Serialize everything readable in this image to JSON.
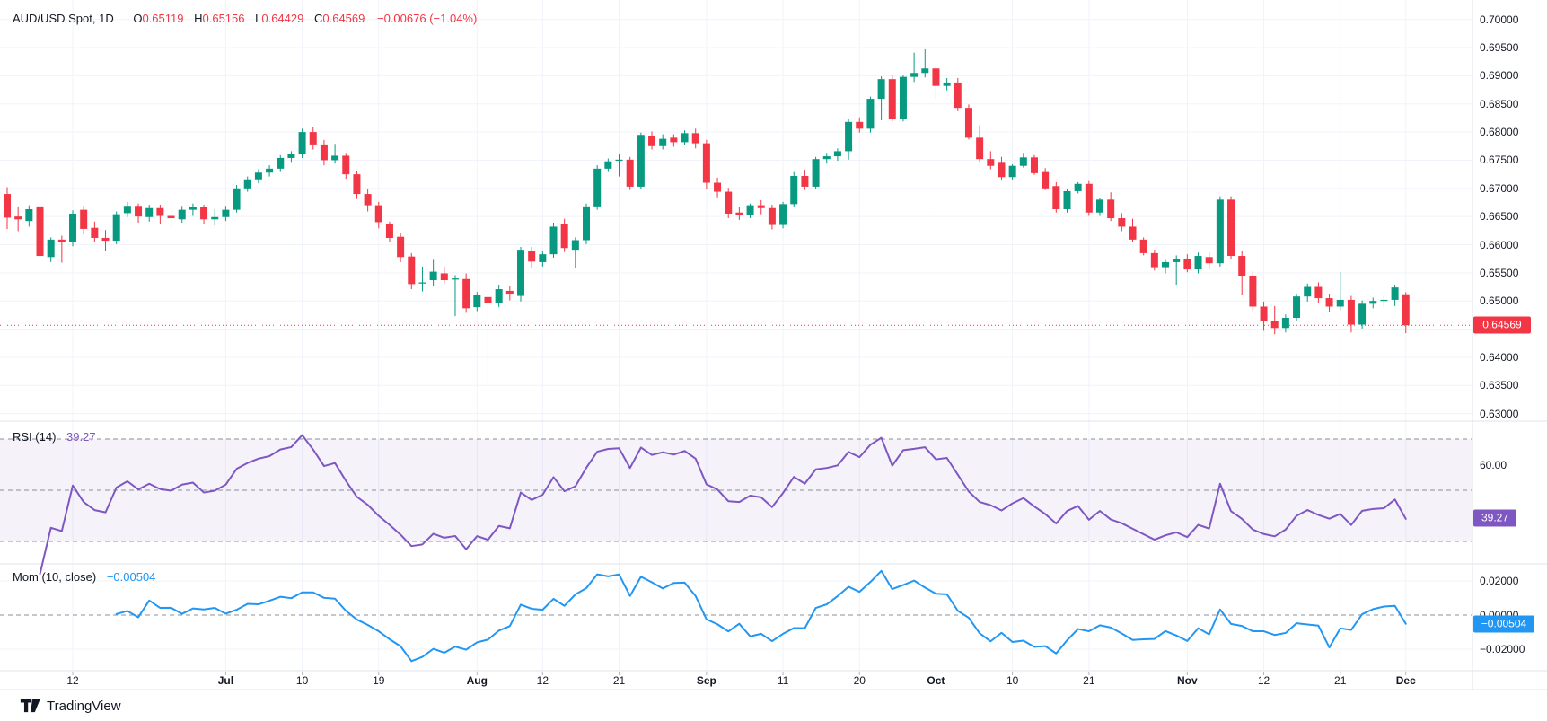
{
  "header": {
    "symbol_title": "AUD/USD Spot, 1D",
    "o_label": "O",
    "o_value": "0.65119",
    "h_label": "H",
    "h_value": "0.65156",
    "l_label": "L",
    "l_value": "0.64429",
    "c_label": "C",
    "c_value": "0.64569",
    "change": "−0.00676 (−1.04%)"
  },
  "rsi_pane": {
    "label": "RSI (14)",
    "value": "39.27",
    "axis_label": "60.00"
  },
  "mom_pane": {
    "label": "Mom (10, close)",
    "value": "−0.00504",
    "axis_labels": [
      "0.02000",
      "0.00000",
      "−0.02000"
    ]
  },
  "price_axis_badge": "0.64569",
  "watermark": "TradingView",
  "colors": {
    "up": "#089981",
    "down": "#F23645",
    "rsi_line": "#7E57C2",
    "rsi_band_fill": "rgba(126,87,194,0.08)",
    "rsi_badge": "#7E57C2",
    "mom_line": "#2196F3",
    "mom_badge": "#2196F3",
    "last_price": "#F23645",
    "grid": "#F0F3FA",
    "separator": "#E0E3EB",
    "dashed_level": "#8C8F98",
    "text": "#131722"
  },
  "chart_data": {
    "type": "candlestick",
    "title": "AUD/USD Spot, 1D",
    "interval": "1D",
    "price_ylim": [
      0.63,
      0.7
    ],
    "price_ticks": [
      0.7,
      0.695,
      0.69,
      0.685,
      0.68,
      0.675,
      0.67,
      0.665,
      0.66,
      0.655,
      0.65,
      0.64,
      0.635,
      0.63
    ],
    "last_price": 0.64569,
    "grid": true,
    "time_ticks": [
      {
        "label": "12",
        "i": 6,
        "bold": false
      },
      {
        "label": "Jul",
        "i": 20,
        "bold": true
      },
      {
        "label": "10",
        "i": 27,
        "bold": false
      },
      {
        "label": "19",
        "i": 34,
        "bold": false
      },
      {
        "label": "Aug",
        "i": 43,
        "bold": true
      },
      {
        "label": "12",
        "i": 49,
        "bold": false
      },
      {
        "label": "21",
        "i": 56,
        "bold": false
      },
      {
        "label": "Sep",
        "i": 64,
        "bold": true
      },
      {
        "label": "11",
        "i": 71,
        "bold": false
      },
      {
        "label": "20",
        "i": 78,
        "bold": false
      },
      {
        "label": "Oct",
        "i": 85,
        "bold": true
      },
      {
        "label": "10",
        "i": 92,
        "bold": false
      },
      {
        "label": "21",
        "i": 99,
        "bold": false
      },
      {
        "label": "Nov",
        "i": 108,
        "bold": true
      },
      {
        "label": "12",
        "i": 115,
        "bold": false
      },
      {
        "label": "21",
        "i": 122,
        "bold": false
      },
      {
        "label": "Dec",
        "i": 128,
        "bold": true
      }
    ],
    "indicators": [
      {
        "name": "RSI",
        "period": 14,
        "last": 39.27,
        "levels": [
          70,
          50,
          30
        ],
        "visible_axis_label": 60
      },
      {
        "name": "Momentum",
        "period": 10,
        "source": "close",
        "last": -0.00504,
        "axis_ticks": [
          0.02,
          0.0,
          -0.02
        ]
      }
    ],
    "candles": [
      [
        0.669,
        0.6702,
        0.6628,
        0.6648
      ],
      [
        0.665,
        0.6668,
        0.6624,
        0.6645
      ],
      [
        0.6642,
        0.667,
        0.6632,
        0.6663
      ],
      [
        0.6668,
        0.6673,
        0.6572,
        0.658
      ],
      [
        0.6578,
        0.6613,
        0.6569,
        0.6609
      ],
      [
        0.6609,
        0.6616,
        0.6568,
        0.6604
      ],
      [
        0.6604,
        0.6661,
        0.6597,
        0.6655
      ],
      [
        0.6662,
        0.6669,
        0.6618,
        0.6628
      ],
      [
        0.663,
        0.6641,
        0.6604,
        0.6612
      ],
      [
        0.6612,
        0.6626,
        0.6589,
        0.6607
      ],
      [
        0.6607,
        0.6659,
        0.6601,
        0.6654
      ],
      [
        0.6656,
        0.6676,
        0.6649,
        0.6669
      ],
      [
        0.6669,
        0.6673,
        0.6639,
        0.665
      ],
      [
        0.6649,
        0.6671,
        0.6641,
        0.6665
      ],
      [
        0.6665,
        0.6671,
        0.6637,
        0.6651
      ],
      [
        0.6651,
        0.6661,
        0.6629,
        0.6647
      ],
      [
        0.6645,
        0.6669,
        0.6639,
        0.6662
      ],
      [
        0.6662,
        0.6673,
        0.6651,
        0.6667
      ],
      [
        0.6667,
        0.6671,
        0.6637,
        0.6645
      ],
      [
        0.6645,
        0.6663,
        0.6634,
        0.6649
      ],
      [
        0.6649,
        0.6669,
        0.6642,
        0.6662
      ],
      [
        0.6662,
        0.6706,
        0.6657,
        0.67
      ],
      [
        0.67,
        0.6721,
        0.6694,
        0.6716
      ],
      [
        0.6716,
        0.6734,
        0.6709,
        0.6728
      ],
      [
        0.6728,
        0.6741,
        0.6721,
        0.6735
      ],
      [
        0.6735,
        0.6759,
        0.6729,
        0.6754
      ],
      [
        0.6754,
        0.6766,
        0.6747,
        0.6761
      ],
      [
        0.6761,
        0.6806,
        0.6754,
        0.68
      ],
      [
        0.68,
        0.6809,
        0.6769,
        0.6778
      ],
      [
        0.6778,
        0.6786,
        0.6741,
        0.675
      ],
      [
        0.675,
        0.6779,
        0.6744,
        0.6758
      ],
      [
        0.6758,
        0.6763,
        0.6717,
        0.6725
      ],
      [
        0.6725,
        0.6731,
        0.6681,
        0.669
      ],
      [
        0.669,
        0.6699,
        0.6659,
        0.667
      ],
      [
        0.667,
        0.6676,
        0.6629,
        0.664
      ],
      [
        0.6637,
        0.6641,
        0.6604,
        0.6612
      ],
      [
        0.6614,
        0.6621,
        0.6569,
        0.6578
      ],
      [
        0.6579,
        0.6585,
        0.6521,
        0.653
      ],
      [
        0.6531,
        0.6561,
        0.6517,
        0.6533
      ],
      [
        0.6537,
        0.6573,
        0.6527,
        0.6552
      ],
      [
        0.6549,
        0.6561,
        0.6531,
        0.6537
      ],
      [
        0.6538,
        0.6546,
        0.6473,
        0.654
      ],
      [
        0.6539,
        0.6549,
        0.6479,
        0.6487
      ],
      [
        0.6489,
        0.6516,
        0.6482,
        0.651
      ],
      [
        0.6507,
        0.6513,
        0.6351,
        0.6496
      ],
      [
        0.6496,
        0.6529,
        0.6489,
        0.6521
      ],
      [
        0.6518,
        0.6526,
        0.6501,
        0.6513
      ],
      [
        0.6509,
        0.6596,
        0.6499,
        0.6591
      ],
      [
        0.6589,
        0.6596,
        0.6559,
        0.657
      ],
      [
        0.6569,
        0.6589,
        0.6561,
        0.6583
      ],
      [
        0.6583,
        0.6639,
        0.6577,
        0.6632
      ],
      [
        0.6636,
        0.6646,
        0.6587,
        0.6594
      ],
      [
        0.6591,
        0.6613,
        0.6559,
        0.6608
      ],
      [
        0.6608,
        0.6673,
        0.6601,
        0.6668
      ],
      [
        0.6668,
        0.6741,
        0.6662,
        0.6735
      ],
      [
        0.6735,
        0.6753,
        0.6729,
        0.6748
      ],
      [
        0.6749,
        0.6761,
        0.6721,
        0.6751
      ],
      [
        0.6751,
        0.6756,
        0.6697,
        0.6703
      ],
      [
        0.6703,
        0.6799,
        0.6699,
        0.6795
      ],
      [
        0.6793,
        0.6801,
        0.6769,
        0.6775
      ],
      [
        0.6775,
        0.6796,
        0.6769,
        0.6788
      ],
      [
        0.679,
        0.6796,
        0.6774,
        0.6782
      ],
      [
        0.6782,
        0.6803,
        0.6777,
        0.6798
      ],
      [
        0.6798,
        0.6806,
        0.6771,
        0.678
      ],
      [
        0.678,
        0.6786,
        0.6699,
        0.671
      ],
      [
        0.671,
        0.6719,
        0.6684,
        0.6694
      ],
      [
        0.6694,
        0.6701,
        0.6647,
        0.6655
      ],
      [
        0.6657,
        0.6667,
        0.6644,
        0.6652
      ],
      [
        0.6652,
        0.6673,
        0.6647,
        0.667
      ],
      [
        0.667,
        0.6679,
        0.6654,
        0.6665
      ],
      [
        0.6665,
        0.6671,
        0.6627,
        0.6635
      ],
      [
        0.6635,
        0.6676,
        0.6629,
        0.6672
      ],
      [
        0.6672,
        0.6729,
        0.6667,
        0.6722
      ],
      [
        0.6722,
        0.6733,
        0.6697,
        0.6703
      ],
      [
        0.6703,
        0.6756,
        0.6699,
        0.6752
      ],
      [
        0.6752,
        0.6763,
        0.6744,
        0.6757
      ],
      [
        0.6757,
        0.6771,
        0.6749,
        0.6766
      ],
      [
        0.6766,
        0.6823,
        0.6751,
        0.6818
      ],
      [
        0.6818,
        0.6826,
        0.6799,
        0.6806
      ],
      [
        0.6806,
        0.6863,
        0.6799,
        0.6859
      ],
      [
        0.6859,
        0.6899,
        0.6821,
        0.6894
      ],
      [
        0.6894,
        0.6901,
        0.6819,
        0.6824
      ],
      [
        0.6824,
        0.6901,
        0.6819,
        0.6898
      ],
      [
        0.6898,
        0.6941,
        0.6889,
        0.6905
      ],
      [
        0.6905,
        0.6947,
        0.6897,
        0.6913
      ],
      [
        0.6913,
        0.6919,
        0.6859,
        0.6882
      ],
      [
        0.6882,
        0.6896,
        0.6874,
        0.6888
      ],
      [
        0.6888,
        0.6896,
        0.6837,
        0.6843
      ],
      [
        0.6843,
        0.6849,
        0.6787,
        0.679
      ],
      [
        0.679,
        0.6812,
        0.6747,
        0.6752
      ],
      [
        0.6752,
        0.6766,
        0.6734,
        0.674
      ],
      [
        0.6747,
        0.6756,
        0.6714,
        0.672
      ],
      [
        0.672,
        0.6743,
        0.6714,
        0.674
      ],
      [
        0.674,
        0.6763,
        0.6737,
        0.6755
      ],
      [
        0.6755,
        0.6759,
        0.6724,
        0.6727
      ],
      [
        0.6729,
        0.6736,
        0.6697,
        0.67
      ],
      [
        0.6704,
        0.6711,
        0.6657,
        0.6663
      ],
      [
        0.6663,
        0.6698,
        0.6657,
        0.6695
      ],
      [
        0.6695,
        0.6711,
        0.6691,
        0.6708
      ],
      [
        0.6708,
        0.6713,
        0.6651,
        0.6657
      ],
      [
        0.6657,
        0.6683,
        0.6651,
        0.668
      ],
      [
        0.668,
        0.6693,
        0.6642,
        0.6647
      ],
      [
        0.6647,
        0.6656,
        0.6624,
        0.6632
      ],
      [
        0.6632,
        0.6646,
        0.6604,
        0.6609
      ],
      [
        0.6609,
        0.6613,
        0.6581,
        0.6585
      ],
      [
        0.6585,
        0.6591,
        0.6554,
        0.656
      ],
      [
        0.656,
        0.6573,
        0.6549,
        0.6569
      ],
      [
        0.6569,
        0.6581,
        0.6529,
        0.6575
      ],
      [
        0.6575,
        0.6583,
        0.6551,
        0.6556
      ],
      [
        0.6556,
        0.6586,
        0.6549,
        0.658
      ],
      [
        0.6578,
        0.6586,
        0.6556,
        0.6567
      ],
      [
        0.6567,
        0.6686,
        0.6561,
        0.668
      ],
      [
        0.668,
        0.6686,
        0.6574,
        0.658
      ],
      [
        0.658,
        0.6589,
        0.6511,
        0.6545
      ],
      [
        0.6545,
        0.6553,
        0.6479,
        0.649
      ],
      [
        0.649,
        0.6499,
        0.6447,
        0.6465
      ],
      [
        0.6465,
        0.6491,
        0.6441,
        0.6452
      ],
      [
        0.6452,
        0.6476,
        0.6444,
        0.647
      ],
      [
        0.647,
        0.6513,
        0.6464,
        0.6508
      ],
      [
        0.6508,
        0.6531,
        0.6499,
        0.6525
      ],
      [
        0.6525,
        0.6533,
        0.6497,
        0.6505
      ],
      [
        0.6505,
        0.6513,
        0.6481,
        0.649
      ],
      [
        0.649,
        0.6551,
        0.6484,
        0.6502
      ],
      [
        0.6502,
        0.6509,
        0.6444,
        0.6458
      ],
      [
        0.6458,
        0.6501,
        0.6451,
        0.6495
      ],
      [
        0.6495,
        0.6506,
        0.6487,
        0.65
      ],
      [
        0.65,
        0.6509,
        0.6489,
        0.6502
      ],
      [
        0.6502,
        0.6529,
        0.6491,
        0.6524
      ],
      [
        0.65119,
        0.65156,
        0.64429,
        0.64569
      ]
    ]
  }
}
